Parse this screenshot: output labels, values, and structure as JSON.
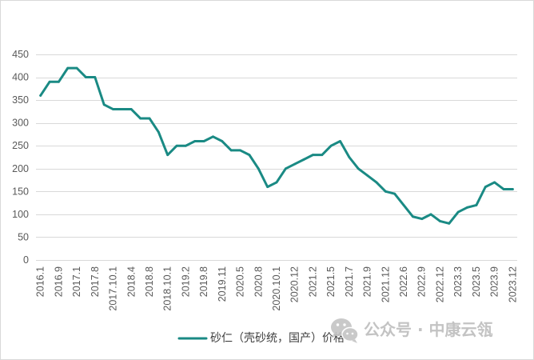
{
  "colors": {
    "grid": "#d9d9d9",
    "axis_text": "#595959",
    "watermark": "#bdbdbd"
  },
  "watermark": {
    "text": "公众号 · 中康云瓴",
    "icon": "wechat-icon"
  },
  "chart_data": {
    "type": "line",
    "categories": [
      "2016.1",
      "",
      "2016.9",
      "",
      "2017.1",
      "",
      "2017.8",
      "",
      "2017.10.1",
      "",
      "2018.4",
      "",
      "2018.8",
      "",
      "2018.10.1",
      "",
      "2019.2",
      "",
      "2019.8",
      "",
      "2019.11",
      "",
      "2020.5",
      "",
      "2020.8",
      "",
      "2020.10.1",
      "",
      "2020.12",
      "",
      "2021.2",
      "",
      "2021.5",
      "",
      "2021.7",
      "",
      "2021.9",
      "",
      "2021.12",
      "",
      "2022.6",
      "",
      "2022.9",
      "",
      "2022.12",
      "",
      "2023.3",
      "",
      "2023.5",
      "",
      "2023.9",
      "",
      "2023.12"
    ],
    "series": [
      {
        "name": "砂仁（壳砂统，国产）价格",
        "color": "#1a8a84",
        "values": [
          360,
          390,
          390,
          420,
          420,
          400,
          400,
          340,
          330,
          330,
          330,
          310,
          310,
          280,
          230,
          250,
          250,
          260,
          260,
          270,
          260,
          240,
          240,
          230,
          200,
          160,
          170,
          200,
          210,
          220,
          230,
          230,
          250,
          260,
          225,
          200,
          185,
          170,
          150,
          145,
          120,
          95,
          90,
          100,
          85,
          80,
          105,
          115,
          120,
          160,
          170,
          155,
          155
        ]
      }
    ],
    "ylim": [
      0,
      450
    ],
    "y_ticks": [
      0,
      50,
      100,
      150,
      200,
      250,
      300,
      350,
      400,
      450
    ],
    "grid": true,
    "legend": "bottom"
  }
}
